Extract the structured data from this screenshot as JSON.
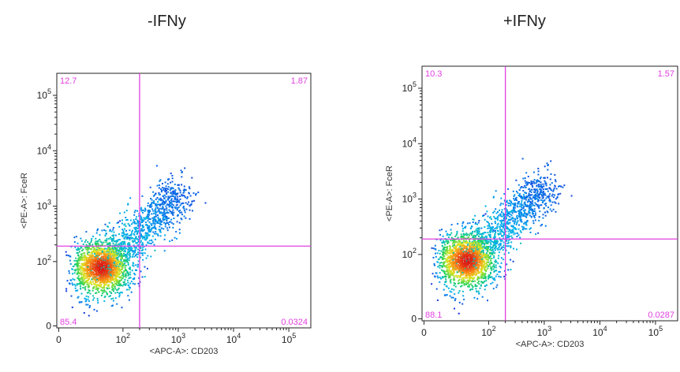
{
  "chart_data": [
    {
      "type": "scatter",
      "title": "-IFNy",
      "xlabel": "<APC-A>: CD203",
      "ylabel": "<PE-A>: FceR",
      "x_scale": "biexponential",
      "y_scale": "biexponential",
      "x_ticks": [
        "0",
        "10^2",
        "10^3",
        "10^4",
        "10^5"
      ],
      "y_ticks": [
        "0",
        "10^2",
        "10^3",
        "10^4",
        "10^5"
      ],
      "gate": {
        "x": 200,
        "y": 190
      },
      "quadrants": {
        "upper_left": "12.7",
        "upper_right": "1.87",
        "lower_left": "85.4",
        "lower_right": "0.0324"
      },
      "population": {
        "center": [
          40,
          80
        ],
        "spread": "diagonal toward ~10^3 on both axes"
      },
      "gate_color": "#e040e0"
    },
    {
      "type": "scatter",
      "title": "+IFNy",
      "xlabel": "<APC-A>: CD203",
      "ylabel": "<PE-A>: FceR",
      "x_scale": "biexponential",
      "y_scale": "biexponential",
      "x_ticks": [
        "0",
        "10^2",
        "10^3",
        "10^4",
        "10^5"
      ],
      "y_ticks": [
        "0",
        "10^2",
        "10^3",
        "10^4",
        "10^5"
      ],
      "gate": {
        "x": 200,
        "y": 190
      },
      "quadrants": {
        "upper_left": "10.3",
        "upper_right": "1.57",
        "lower_left": "88.1",
        "lower_right": "0.0287"
      },
      "population": {
        "center": [
          40,
          80
        ],
        "spread": "diagonal toward ~10^3 on both axes"
      },
      "gate_color": "#e040e0"
    }
  ]
}
